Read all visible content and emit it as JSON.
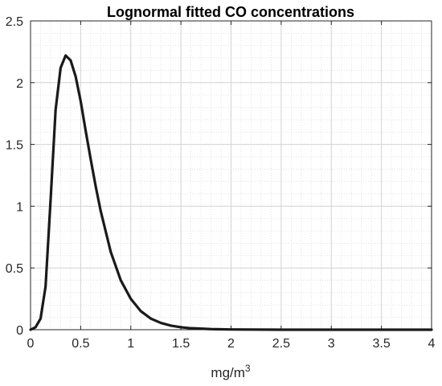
{
  "chart_data": {
    "type": "line",
    "title": "Lognormal fitted CO concentrations",
    "xlabel": {
      "base": "mg/m",
      "superscript": "3"
    },
    "ylabel": "",
    "xlim": [
      0,
      4
    ],
    "ylim": [
      0,
      2.5
    ],
    "x_ticks": [
      0,
      0.5,
      1,
      1.5,
      2,
      2.5,
      3,
      3.5,
      4
    ],
    "x_tick_labels": [
      "0",
      "0.5",
      "1",
      "1.5",
      "2",
      "2.5",
      "3",
      "3.5",
      "4"
    ],
    "y_ticks": [
      0,
      0.5,
      1,
      1.5,
      2,
      2.5
    ],
    "y_tick_labels": [
      "0",
      "0.5",
      "1",
      "1.5",
      "2",
      "2.5"
    ],
    "grid": true,
    "minor_grid": true,
    "series": [
      {
        "color": "#1a1a1a",
        "x": [
          0.0,
          0.05,
          0.1,
          0.15,
          0.2,
          0.25,
          0.3,
          0.35,
          0.4,
          0.45,
          0.5,
          0.55,
          0.6,
          0.65,
          0.7,
          0.8,
          0.9,
          1.0,
          1.1,
          1.2,
          1.3,
          1.4,
          1.5,
          1.6,
          1.8,
          2.0,
          2.5,
          3.0,
          3.5,
          4.0
        ],
        "y": [
          0.0,
          0.02,
          0.09,
          0.35,
          1.05,
          1.78,
          2.12,
          2.22,
          2.18,
          2.05,
          1.85,
          1.61,
          1.38,
          1.16,
          0.96,
          0.63,
          0.4,
          0.25,
          0.15,
          0.09,
          0.055,
          0.033,
          0.02,
          0.012,
          0.005,
          0.002,
          0.0,
          0.0,
          0.0,
          0.0
        ]
      }
    ]
  }
}
